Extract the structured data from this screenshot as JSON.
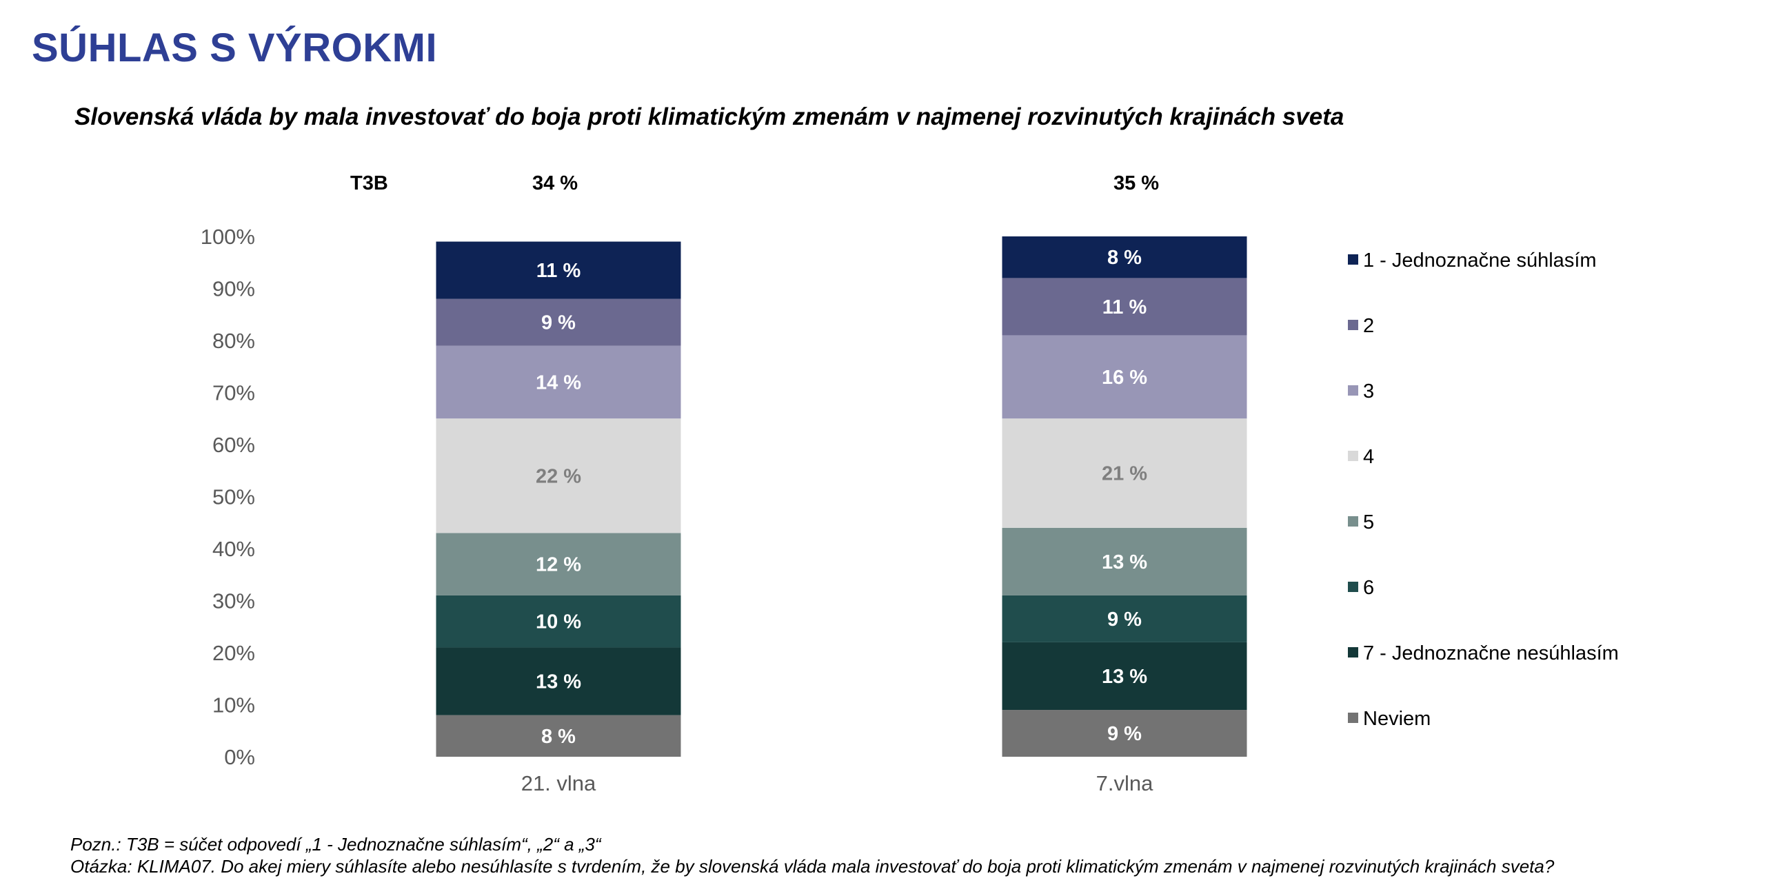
{
  "header": {
    "title": "SÚHLAS S VÝROKMI",
    "subtitle": "Slovenská vláda by mala investovať do boja proti klimatickým zmenám v najmenej rozvinutých krajinách sveta"
  },
  "t3b": {
    "label": "T3B",
    "values": [
      "34 %",
      "35 %"
    ]
  },
  "chart_data": {
    "type": "bar",
    "stacked": true,
    "categories": [
      "21. vlna",
      "7.vlna"
    ],
    "ylim": [
      0,
      100
    ],
    "yticks": [
      "0%",
      "10%",
      "20%",
      "30%",
      "40%",
      "50%",
      "60%",
      "70%",
      "80%",
      "90%",
      "100%"
    ],
    "value_format": "{v} %",
    "legend_position": "right",
    "series": [
      {
        "name": "Neviem",
        "values": [
          8,
          9
        ],
        "color": "#737373",
        "label_color": "#ffffff"
      },
      {
        "name": "7 - Jednoznačne nesúhlasím",
        "values": [
          13,
          13
        ],
        "color": "#143838",
        "label_color": "#ffffff"
      },
      {
        "name": "6",
        "values": [
          10,
          9
        ],
        "color": "#204d4d",
        "label_color": "#ffffff"
      },
      {
        "name": "5",
        "values": [
          12,
          13
        ],
        "color": "#788f8d",
        "label_color": "#ffffff"
      },
      {
        "name": "4",
        "values": [
          22,
          21
        ],
        "color": "#d9d9d9",
        "label_color": "#7f7f7f"
      },
      {
        "name": "3",
        "values": [
          14,
          16
        ],
        "color": "#9896b6",
        "label_color": "#ffffff"
      },
      {
        "name": "2",
        "values": [
          9,
          11
        ],
        "color": "#6b6990",
        "label_color": "#ffffff"
      },
      {
        "name": "1 - Jednoznačne súhlasím",
        "values": [
          11,
          8
        ],
        "color": "#0e2355",
        "label_color": "#ffffff"
      }
    ]
  },
  "footer": {
    "note": "Pozn.: T3B = súčet odpovedí „1 - Jednoznačne súhlasím“, „2“ a „3“",
    "question": "Otázka: KLIMA07. Do akej miery súhlasíte alebo nesúhlasíte s tvrdením, že by slovenská vláda mala investovať do boja proti klimatickým zmenám v najmenej rozvinutých krajinách sveta?"
  }
}
